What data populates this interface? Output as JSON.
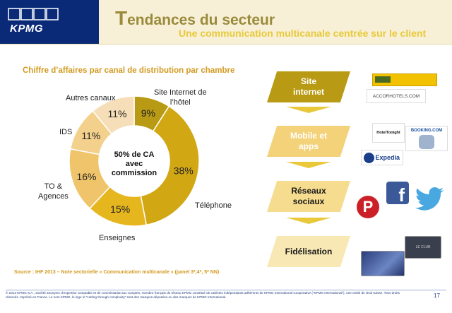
{
  "header": {
    "logo_text": "KPMG",
    "title_initial": "T",
    "title_rest": "endances du secteur",
    "subtitle": "Une communication multicanale centrée sur le client"
  },
  "chart_data": {
    "type": "pie",
    "title": "Chiffre d’affaires par canal de distribution par chambre",
    "center_label": "50% de CA avec commission",
    "slices": [
      {
        "label": "Site Internet de l’hôtel",
        "value": 9,
        "value_label": "9%",
        "color": "#b89a14"
      },
      {
        "label": "Téléphone",
        "value": 38,
        "value_label": "38%",
        "color": "#d2a714"
      },
      {
        "label": "Enseignes",
        "value": 15,
        "value_label": "15%",
        "color": "#e6b61e"
      },
      {
        "label": "TO & Agences",
        "value": 16,
        "value_label": "16%",
        "color": "#f0c46a"
      },
      {
        "label": "IDS",
        "value": 11,
        "value_label": "11%",
        "color": "#f3d18c"
      },
      {
        "label": "Autres canaux",
        "value": 11,
        "value_label": "11%",
        "color": "#f6dfb8"
      }
    ]
  },
  "labels": {
    "site_internet": "Site Internet de",
    "site_internet_2": "l’hôtel",
    "telephone": "Téléphone",
    "enseignes": "Enseignes",
    "to_agences": "TO &",
    "to_agences_2": "Agences",
    "ids": "IDS",
    "autres": "Autres canaux"
  },
  "source": "Source : IHF 2013 – Note sectorielle « Communication multicanale » (panel 3*,4*, 5* NN)",
  "channels": [
    {
      "line1": "Site",
      "line2": "internet",
      "color": "#b89a14",
      "text_color": "#ffffff"
    },
    {
      "line1": "Mobile et",
      "line2": "apps",
      "color": "#f3d27a",
      "text_color": "#ffffff"
    },
    {
      "line1": "Réseaux",
      "line2": "sociaux",
      "color": "#f5dc8e",
      "text_color": "#1a1a1a"
    },
    {
      "line1": "Fidélisation",
      "line2": "",
      "color": "#f8e8b4",
      "text_color": "#1a1a1a"
    }
  ],
  "logos": {
    "accor": "ACCORHOTELS.COM",
    "hoteltonight": "HotelTonight",
    "booking": "BOOKING.COM",
    "expedia": "Expedia",
    "club": "LE CLUB"
  },
  "footer": {
    "text": "© 2013 KPMG S.A., société anonyme d’expertise comptable et de commissariat aux comptes, membre français du réseau KPMG constitué de cabinets indépendants adhérents de KPMG International Cooperative (“KPMG International”), une entité de droit suisse. Tous droits réservés. Imprimé en France. Le nom KPMG, le logo et “cutting through complexity” sont des marques déposées ou des marques de KPMG International.",
    "page": "17"
  }
}
